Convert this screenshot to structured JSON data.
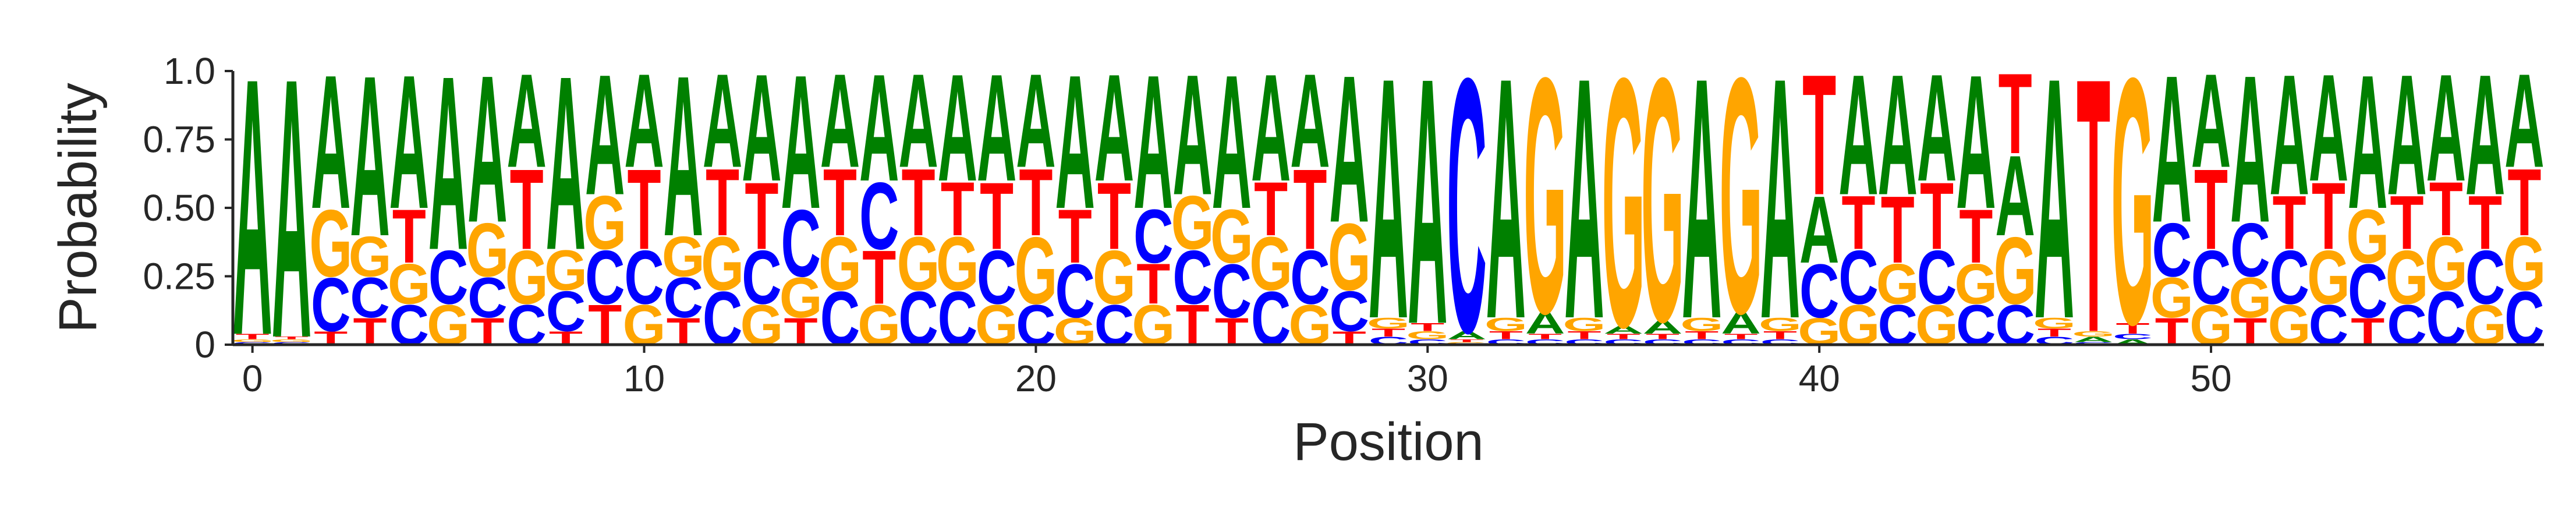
{
  "chart_data": {
    "type": "sequence-logo",
    "xlabel": "Position",
    "ylabel": "Probability",
    "xlim": [
      -0.5,
      58.5
    ],
    "ylim": [
      0,
      1
    ],
    "xticks": [
      0,
      10,
      20,
      30,
      40,
      50
    ],
    "xtick_labels": [
      "0",
      "10",
      "20",
      "30",
      "40",
      "50"
    ],
    "yticks": [
      0,
      0.25,
      0.5,
      0.75,
      1.0
    ],
    "ytick_labels": [
      "0",
      "0.25",
      "0.50",
      "0.75",
      "1.0"
    ],
    "colors": {
      "A": "#008000",
      "C": "#0000ff",
      "G": "#ffa500",
      "T": "#ff0000"
    },
    "positions": [
      {
        "A": 0.96,
        "C": 0.01,
        "G": 0.01,
        "T": 0.02
      },
      {
        "A": 0.97,
        "C": 0.01,
        "G": 0.01,
        "T": 0.01
      },
      {
        "A": 0.5,
        "C": 0.2,
        "G": 0.25,
        "T": 0.05
      },
      {
        "A": 0.6,
        "C": 0.15,
        "G": 0.15,
        "T": 0.1
      },
      {
        "A": 0.5,
        "C": 0.15,
        "G": 0.15,
        "T": 0.2
      },
      {
        "A": 0.65,
        "C": 0.2,
        "G": 0.15,
        "T": 0.0
      },
      {
        "A": 0.55,
        "C": 0.15,
        "G": 0.2,
        "T": 0.1
      },
      {
        "A": 0.35,
        "C": 0.15,
        "G": 0.2,
        "T": 0.3
      },
      {
        "A": 0.65,
        "C": 0.15,
        "G": 0.15,
        "T": 0.05
      },
      {
        "A": 0.45,
        "C": 0.2,
        "G": 0.2,
        "T": 0.15
      },
      {
        "A": 0.35,
        "C": 0.2,
        "G": 0.15,
        "T": 0.3
      },
      {
        "A": 0.6,
        "C": 0.15,
        "G": 0.15,
        "T": 0.1
      },
      {
        "A": 0.35,
        "C": 0.2,
        "G": 0.2,
        "T": 0.25
      },
      {
        "A": 0.4,
        "C": 0.2,
        "G": 0.15,
        "T": 0.25
      },
      {
        "A": 0.5,
        "C": 0.25,
        "G": 0.15,
        "T": 0.1
      },
      {
        "A": 0.35,
        "C": 0.2,
        "G": 0.2,
        "T": 0.25
      },
      {
        "A": 0.4,
        "C": 0.25,
        "G": 0.15,
        "T": 0.2
      },
      {
        "A": 0.35,
        "C": 0.2,
        "G": 0.2,
        "T": 0.25
      },
      {
        "A": 0.4,
        "C": 0.2,
        "G": 0.2,
        "T": 0.2
      },
      {
        "A": 0.4,
        "C": 0.2,
        "G": 0.15,
        "T": 0.25
      },
      {
        "A": 0.35,
        "C": 0.15,
        "G": 0.25,
        "T": 0.25
      },
      {
        "A": 0.5,
        "C": 0.2,
        "G": 0.1,
        "T": 0.2
      },
      {
        "A": 0.4,
        "C": 0.15,
        "G": 0.2,
        "T": 0.25
      },
      {
        "A": 0.5,
        "C": 0.2,
        "G": 0.15,
        "T": 0.15
      },
      {
        "A": 0.45,
        "C": 0.2,
        "G": 0.2,
        "T": 0.15
      },
      {
        "A": 0.5,
        "C": 0.2,
        "G": 0.2,
        "T": 0.1
      },
      {
        "A": 0.4,
        "C": 0.2,
        "G": 0.2,
        "T": 0.2
      },
      {
        "A": 0.35,
        "C": 0.2,
        "G": 0.15,
        "T": 0.3
      },
      {
        "A": 0.55,
        "C": 0.15,
        "G": 0.25,
        "T": 0.05
      },
      {
        "A": 0.9,
        "C": 0.03,
        "G": 0.04,
        "T": 0.03
      },
      {
        "A": 0.92,
        "C": 0.02,
        "G": 0.03,
        "T": 0.03
      },
      {
        "A": 0.03,
        "C": 0.95,
        "G": 0.01,
        "T": 0.01
      },
      {
        "A": 0.9,
        "C": 0.02,
        "G": 0.05,
        "T": 0.03
      },
      {
        "A": 0.08,
        "C": 0.02,
        "G": 0.88,
        "T": 0.02
      },
      {
        "A": 0.9,
        "C": 0.02,
        "G": 0.05,
        "T": 0.03
      },
      {
        "A": 0.03,
        "C": 0.02,
        "G": 0.93,
        "T": 0.02
      },
      {
        "A": 0.05,
        "C": 0.02,
        "G": 0.91,
        "T": 0.02
      },
      {
        "A": 0.9,
        "C": 0.02,
        "G": 0.05,
        "T": 0.03
      },
      {
        "A": 0.08,
        "C": 0.02,
        "G": 0.88,
        "T": 0.02
      },
      {
        "A": 0.9,
        "C": 0.02,
        "G": 0.05,
        "T": 0.03
      },
      {
        "A": 0.25,
        "C": 0.2,
        "G": 0.1,
        "T": 0.45
      },
      {
        "A": 0.45,
        "C": 0.2,
        "G": 0.15,
        "T": 0.2
      },
      {
        "A": 0.45,
        "C": 0.15,
        "G": 0.15,
        "T": 0.25
      },
      {
        "A": 0.4,
        "C": 0.2,
        "G": 0.15,
        "T": 0.25
      },
      {
        "A": 0.5,
        "C": 0.15,
        "G": 0.15,
        "T": 0.2
      },
      {
        "A": 0.3,
        "C": 0.15,
        "G": 0.25,
        "T": 0.3
      },
      {
        "A": 0.9,
        "C": 0.03,
        "G": 0.04,
        "T": 0.03
      },
      {
        "A": 0.02,
        "C": 0.01,
        "G": 0.02,
        "T": 0.95
      },
      {
        "A": 0.02,
        "C": 0.02,
        "G": 0.92,
        "T": 0.04
      },
      {
        "A": 0.55,
        "C": 0.2,
        "G": 0.15,
        "T": 0.1
      },
      {
        "A": 0.35,
        "C": 0.2,
        "G": 0.15,
        "T": 0.3
      },
      {
        "A": 0.55,
        "C": 0.2,
        "G": 0.15,
        "T": 0.1
      },
      {
        "A": 0.45,
        "C": 0.2,
        "G": 0.15,
        "T": 0.2
      },
      {
        "A": 0.4,
        "C": 0.15,
        "G": 0.2,
        "T": 0.25
      },
      {
        "A": 0.5,
        "C": 0.2,
        "G": 0.2,
        "T": 0.1
      },
      {
        "A": 0.45,
        "C": 0.15,
        "G": 0.2,
        "T": 0.2
      },
      {
        "A": 0.4,
        "C": 0.2,
        "G": 0.2,
        "T": 0.2
      },
      {
        "A": 0.45,
        "C": 0.2,
        "G": 0.15,
        "T": 0.2
      },
      {
        "A": 0.35,
        "C": 0.2,
        "G": 0.2,
        "T": 0.25
      }
    ]
  }
}
